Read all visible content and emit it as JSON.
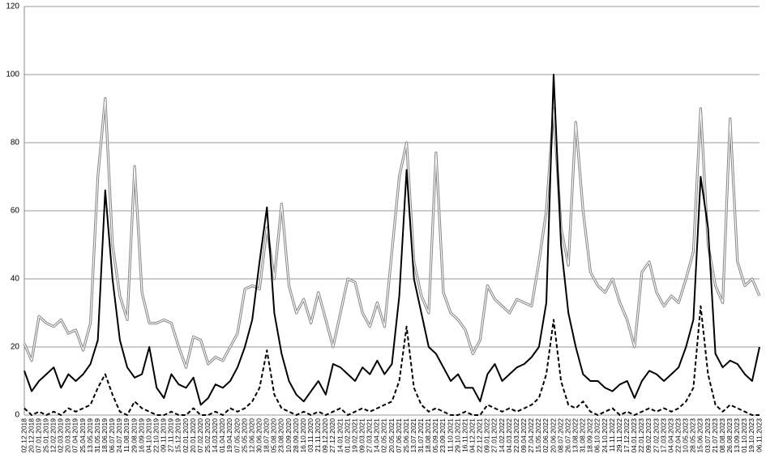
{
  "chart_data": {
    "type": "line",
    "categories": [
      "02.12.2018",
      "20.12.2018",
      "07.01.2019",
      "25.01.2019",
      "12.02.2019",
      "02.03.2019",
      "20.03.2019",
      "07.04.2019",
      "25.04.2019",
      "13.05.2019",
      "31.05.2019",
      "18.06.2019",
      "06.07.2019",
      "24.07.2019",
      "11.08.2019",
      "29.08.2019",
      "16.09.2019",
      "04.10.2019",
      "22.10.2019",
      "09.11.2019",
      "27.11.2019",
      "15.12.2019",
      "02.01.2020",
      "20.01.2020",
      "07.02.2020",
      "25.02.2020",
      "14.03.2020",
      "01.04.2020",
      "19.04.2020",
      "07.05.2020",
      "25.05.2020",
      "12.06.2020",
      "30.06.2020",
      "18.07.2020",
      "05.08.2020",
      "23.08.2020",
      "10.09.2020",
      "28.09.2020",
      "16.10.2020",
      "03.11.2020",
      "21.11.2020",
      "09.12.2020",
      "27.12.2020",
      "14.01.2021",
      "01.02.2021",
      "19.02.2021",
      "09.03.2021",
      "27.03.2021",
      "14.04.2021",
      "02.05.2021",
      "20.05.2021",
      "07.06.2021",
      "25.06.2021",
      "13.07.2021",
      "31.07.2021",
      "18.08.2021",
      "05.09.2021",
      "23.09.2021",
      "11.10.2021",
      "29.10.2021",
      "16.11.2021",
      "04.12.2021",
      "22.12.2021",
      "09.01.2022",
      "27.01.2022",
      "14.02.2022",
      "04.03.2022",
      "22.03.2022",
      "09.04.2022",
      "27.04.2022",
      "15.05.2022",
      "02.06.2022",
      "20.06.2022",
      "08.07.2022",
      "26.07.2022",
      "13.08.2022",
      "31.08.2022",
      "18.09.2022",
      "06.10.2022",
      "24.10.2022",
      "11.11.2022",
      "29.11.2022",
      "17.12.2022",
      "04.01.2023",
      "22.01.2023",
      "09.02.2023",
      "27.02.2023",
      "17.03.2023",
      "04.04.2023",
      "22.04.2023",
      "10.05.2023",
      "28.05.2023",
      "15.06.2023",
      "03.07.2023",
      "21.07.2023",
      "08.08.2023",
      "26.08.2023",
      "13.09.2023",
      "01.10.2023",
      "19.10.2023",
      "06.11.2023"
    ],
    "series": [
      {
        "color": "#888888",
        "style": "double",
        "values": [
          21,
          16,
          29,
          27,
          26,
          28,
          24,
          25,
          19,
          27,
          70,
          93,
          50,
          35,
          28,
          73,
          36,
          27,
          27,
          28,
          27,
          20,
          14,
          23,
          22,
          15,
          17,
          16,
          20,
          24,
          37,
          38,
          37,
          55,
          40,
          62,
          38,
          30,
          34,
          27,
          36,
          28,
          20,
          30,
          40,
          39,
          30,
          26,
          33,
          26,
          48,
          70,
          80,
          45,
          35,
          30,
          77,
          36,
          30,
          28,
          25,
          18,
          22,
          38,
          34,
          32,
          30,
          34,
          33,
          32,
          45,
          60,
          90,
          55,
          44,
          86,
          60,
          42,
          38,
          36,
          40,
          33,
          28,
          20,
          42,
          45,
          36,
          32,
          35,
          33,
          40,
          48,
          90,
          50,
          38,
          33,
          87,
          45,
          38,
          40,
          35
        ]
      },
      {
        "color": "#000000",
        "style": "solid",
        "values": [
          13,
          7,
          10,
          12,
          14,
          8,
          12,
          10,
          12,
          15,
          22,
          66,
          40,
          22,
          14,
          11,
          12,
          20,
          8,
          5,
          12,
          9,
          8,
          11,
          3,
          5,
          9,
          8,
          10,
          14,
          20,
          28,
          45,
          61,
          30,
          18,
          10,
          6,
          4,
          7,
          10,
          6,
          15,
          14,
          12,
          10,
          14,
          12,
          16,
          12,
          15,
          35,
          72,
          40,
          30,
          20,
          18,
          14,
          10,
          12,
          8,
          8,
          4,
          12,
          15,
          10,
          12,
          14,
          15,
          17,
          20,
          33,
          100,
          50,
          30,
          20,
          12,
          10,
          10,
          8,
          7,
          9,
          10,
          5,
          10,
          13,
          12,
          10,
          12,
          14,
          20,
          28,
          70,
          55,
          18,
          14,
          16,
          15,
          12,
          10,
          20
        ]
      },
      {
        "color": "#000000",
        "style": "dashed",
        "values": [
          2,
          0,
          1,
          0,
          1,
          0,
          2,
          1,
          2,
          3,
          8,
          12,
          6,
          1,
          0,
          4,
          2,
          1,
          0,
          0,
          1,
          0,
          0,
          2,
          0,
          0,
          1,
          0,
          2,
          1,
          2,
          4,
          8,
          19,
          6,
          2,
          1,
          0,
          1,
          0,
          1,
          0,
          1,
          2,
          0,
          1,
          2,
          1,
          2,
          3,
          4,
          10,
          26,
          8,
          3,
          1,
          2,
          1,
          0,
          0,
          1,
          0,
          0,
          3,
          2,
          1,
          2,
          1,
          2,
          3,
          5,
          12,
          28,
          10,
          3,
          2,
          4,
          1,
          0,
          1,
          2,
          0,
          1,
          0,
          1,
          2,
          1,
          2,
          1,
          2,
          4,
          8,
          32,
          12,
          3,
          1,
          3,
          2,
          1,
          0,
          0
        ]
      }
    ],
    "ylim": [
      0,
      120
    ],
    "yticks": [
      0,
      20,
      40,
      60,
      80,
      100,
      120
    ],
    "grid": true
  }
}
